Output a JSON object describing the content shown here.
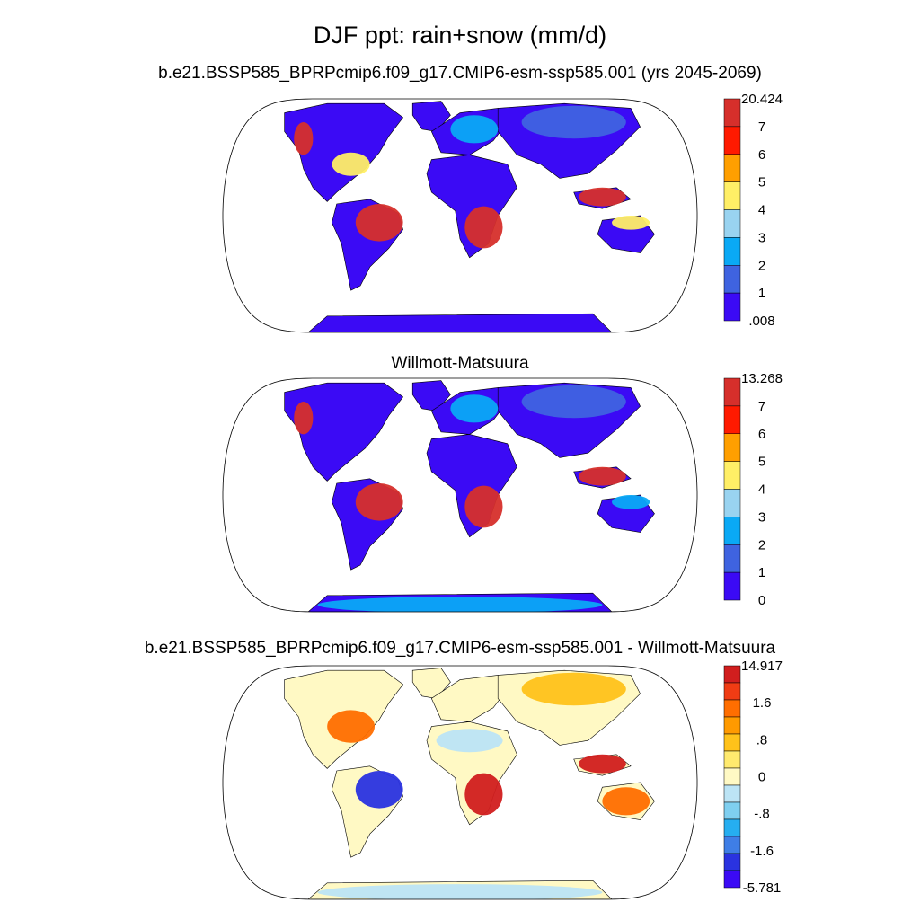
{
  "figure": {
    "title": "DJF ppt: rain+snow (mm/d)"
  },
  "chart_data": [
    {
      "type": "heatmap",
      "title": "b.e21.BSSP585_BPRPcmip6.f09_g17.CMIP6-esm-ssp585.001 (yrs 2045-2069)",
      "projection": "Robinson",
      "colorbar": {
        "labels": [
          "20.424",
          "7",
          "6",
          "5",
          "4",
          "3",
          "2",
          "1",
          ".008"
        ],
        "colors": [
          "#d62f2b",
          "#ff1a00",
          "#ff9f00",
          "#ffef66",
          "#99d3f0",
          "#0aa9f5",
          "#3f63e0",
          "#3b0af5"
        ]
      },
      "land_fill": "#3b0af5",
      "regions": [
        {
          "name": "Amazon",
          "color": "#d62f2b"
        },
        {
          "name": "Southern Africa",
          "color": "#d62f2b"
        },
        {
          "name": "Maritime Continent",
          "color": "#d62f2b"
        },
        {
          "name": "Northern Australia",
          "color": "#ffef66"
        },
        {
          "name": "Siberia",
          "color": "#3f63e0"
        },
        {
          "name": "Europe",
          "color": "#0aa9f5"
        },
        {
          "name": "Southeast US",
          "color": "#ffef66"
        },
        {
          "name": "Pacific Northwest",
          "color": "#d62f2b"
        }
      ]
    },
    {
      "type": "heatmap",
      "title": "Willmott-Matsuura",
      "projection": "Robinson",
      "colorbar": {
        "labels": [
          "13.268",
          "7",
          "6",
          "5",
          "4",
          "3",
          "2",
          "1",
          "0"
        ],
        "colors": [
          "#d62f2b",
          "#ff1a00",
          "#ff9f00",
          "#ffef66",
          "#99d3f0",
          "#0aa9f5",
          "#3f63e0",
          "#3b0af5"
        ]
      },
      "land_fill": "#3b0af5",
      "regions": [
        {
          "name": "Amazon",
          "color": "#d62f2b"
        },
        {
          "name": "Southern Africa",
          "color": "#d62f2b"
        },
        {
          "name": "Maritime Continent",
          "color": "#d62f2b"
        },
        {
          "name": "Northern Australia",
          "color": "#0aa9f5"
        },
        {
          "name": "Siberia",
          "color": "#3f63e0"
        },
        {
          "name": "Europe",
          "color": "#0aa9f5"
        },
        {
          "name": "Antarctica",
          "color": "#0aa9f5"
        },
        {
          "name": "Pacific Northwest",
          "color": "#d62f2b"
        }
      ]
    },
    {
      "type": "heatmap",
      "title": "b.e21.BSSP585_BPRPcmip6.f09_g17.CMIP6-esm-ssp585.001 - Willmott-Matsuura",
      "projection": "Robinson",
      "colorbar": {
        "labels": [
          "14.917",
          "",
          "1.6",
          "",
          ".8",
          "",
          "0",
          "",
          "-.8",
          "",
          "-1.6",
          "",
          "-5.781"
        ],
        "colors": [
          "#d11e1e",
          "#f03c14",
          "#ff6e00",
          "#ff9a00",
          "#ffc21a",
          "#ffea6e",
          "#fff9c4",
          "#bce4f5",
          "#7fcff0",
          "#26aef0",
          "#3f7ee6",
          "#2a33e0",
          "#3b0af5"
        ]
      },
      "land_fill": "#fff9c4",
      "regions": [
        {
          "name": "Amazon",
          "color": "#2a33e0"
        },
        {
          "name": "Southern Africa",
          "color": "#d11e1e"
        },
        {
          "name": "Maritime Continent",
          "color": "#d11e1e"
        },
        {
          "name": "Australia",
          "color": "#ff6e00"
        },
        {
          "name": "Siberia",
          "color": "#ffc21a"
        },
        {
          "name": "North Africa",
          "color": "#bce4f5"
        },
        {
          "name": "Eastern US",
          "color": "#ff6e00"
        },
        {
          "name": "Antarctica",
          "color": "#bce4f5"
        }
      ]
    }
  ]
}
